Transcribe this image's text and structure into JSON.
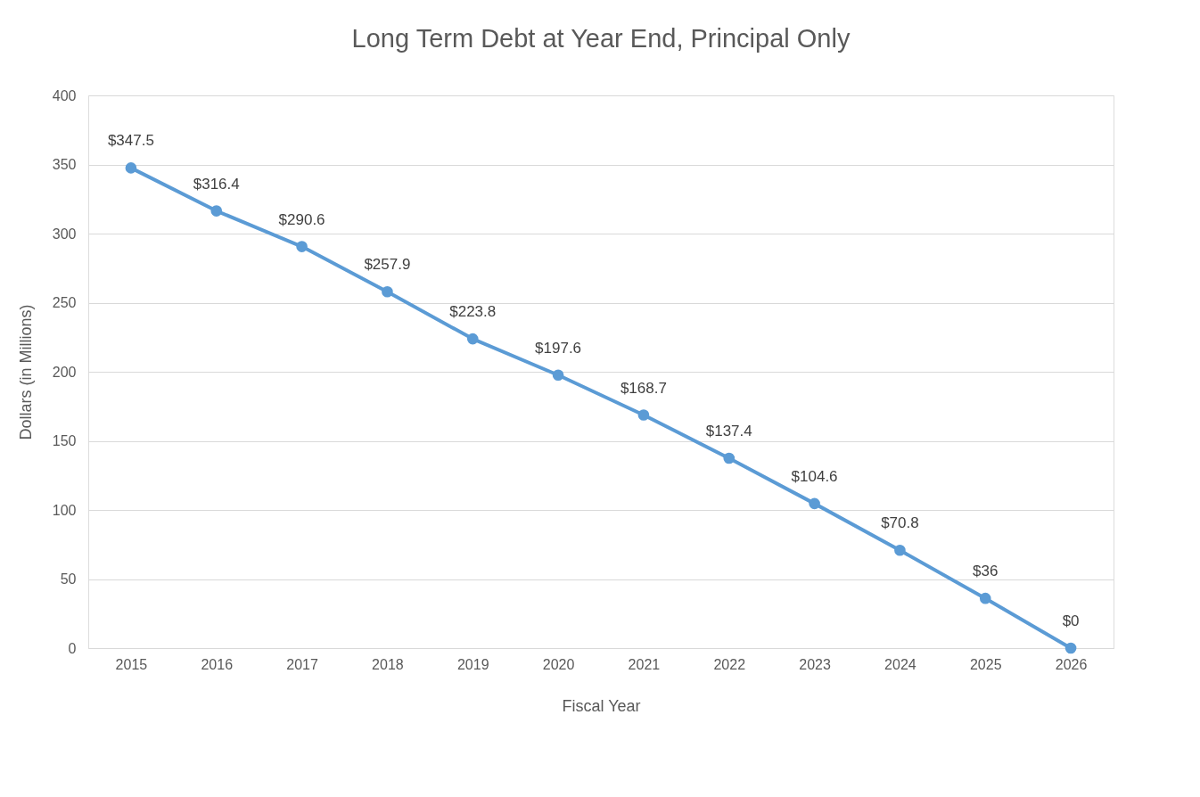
{
  "chart_data": {
    "type": "line",
    "title": "Long Term Debt at Year End, Principal Only",
    "xlabel": "Fiscal Year",
    "ylabel": "Dollars (in Millions)",
    "categories": [
      "2015",
      "2016",
      "2017",
      "2018",
      "2019",
      "2020",
      "2021",
      "2022",
      "2023",
      "2024",
      "2025",
      "2026"
    ],
    "series": [
      {
        "color": "#5b9bd5",
        "values": [
          347.5,
          316.4,
          290.6,
          257.9,
          223.8,
          197.6,
          168.7,
          137.4,
          104.6,
          70.8,
          36,
          0
        ],
        "value_labels": [
          "$347.5",
          "$316.4",
          "$290.6",
          "$257.9",
          "$223.8",
          "$197.6",
          "$168.7",
          "$137.4",
          "$104.6",
          "$70.8",
          "$36",
          "$0"
        ]
      }
    ],
    "ylim": [
      0,
      400
    ],
    "yticks": [
      0,
      50,
      100,
      150,
      200,
      250,
      300,
      350,
      400
    ],
    "grid": "y",
    "marker": "circle",
    "line_style": "solid"
  }
}
